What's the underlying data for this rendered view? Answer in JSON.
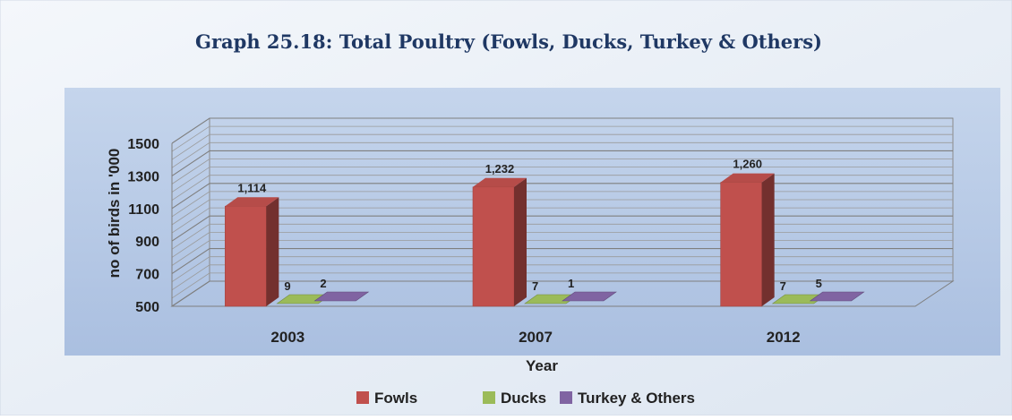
{
  "chart_data": {
    "type": "bar",
    "title": "Graph 25.18: Total Poultry (Fowls, Ducks, Turkey & Others)",
    "xlabel": "Year",
    "ylabel": "no of birds in '000",
    "categories": [
      "2003",
      "2007",
      "2012"
    ],
    "ylim": [
      500,
      1500
    ],
    "yticks": [
      "500",
      "700",
      "900",
      "1100",
      "1300",
      "1500"
    ],
    "grid": true,
    "three_d": true,
    "legend_position": "bottom",
    "series": [
      {
        "name": "Fowls",
        "values": [
          1114,
          1232,
          1260
        ],
        "labels": [
          "1,114",
          "1,232",
          "1,260"
        ],
        "color": "#c0504d"
      },
      {
        "name": "Ducks",
        "values": [
          9,
          7,
          7
        ],
        "labels": [
          "9",
          "7",
          "7"
        ],
        "color": "#9bbb59"
      },
      {
        "name": "Turkey &  Others",
        "values": [
          2,
          1,
          5
        ],
        "labels": [
          "2",
          "1",
          "5"
        ],
        "color": "#8064a2"
      }
    ]
  }
}
